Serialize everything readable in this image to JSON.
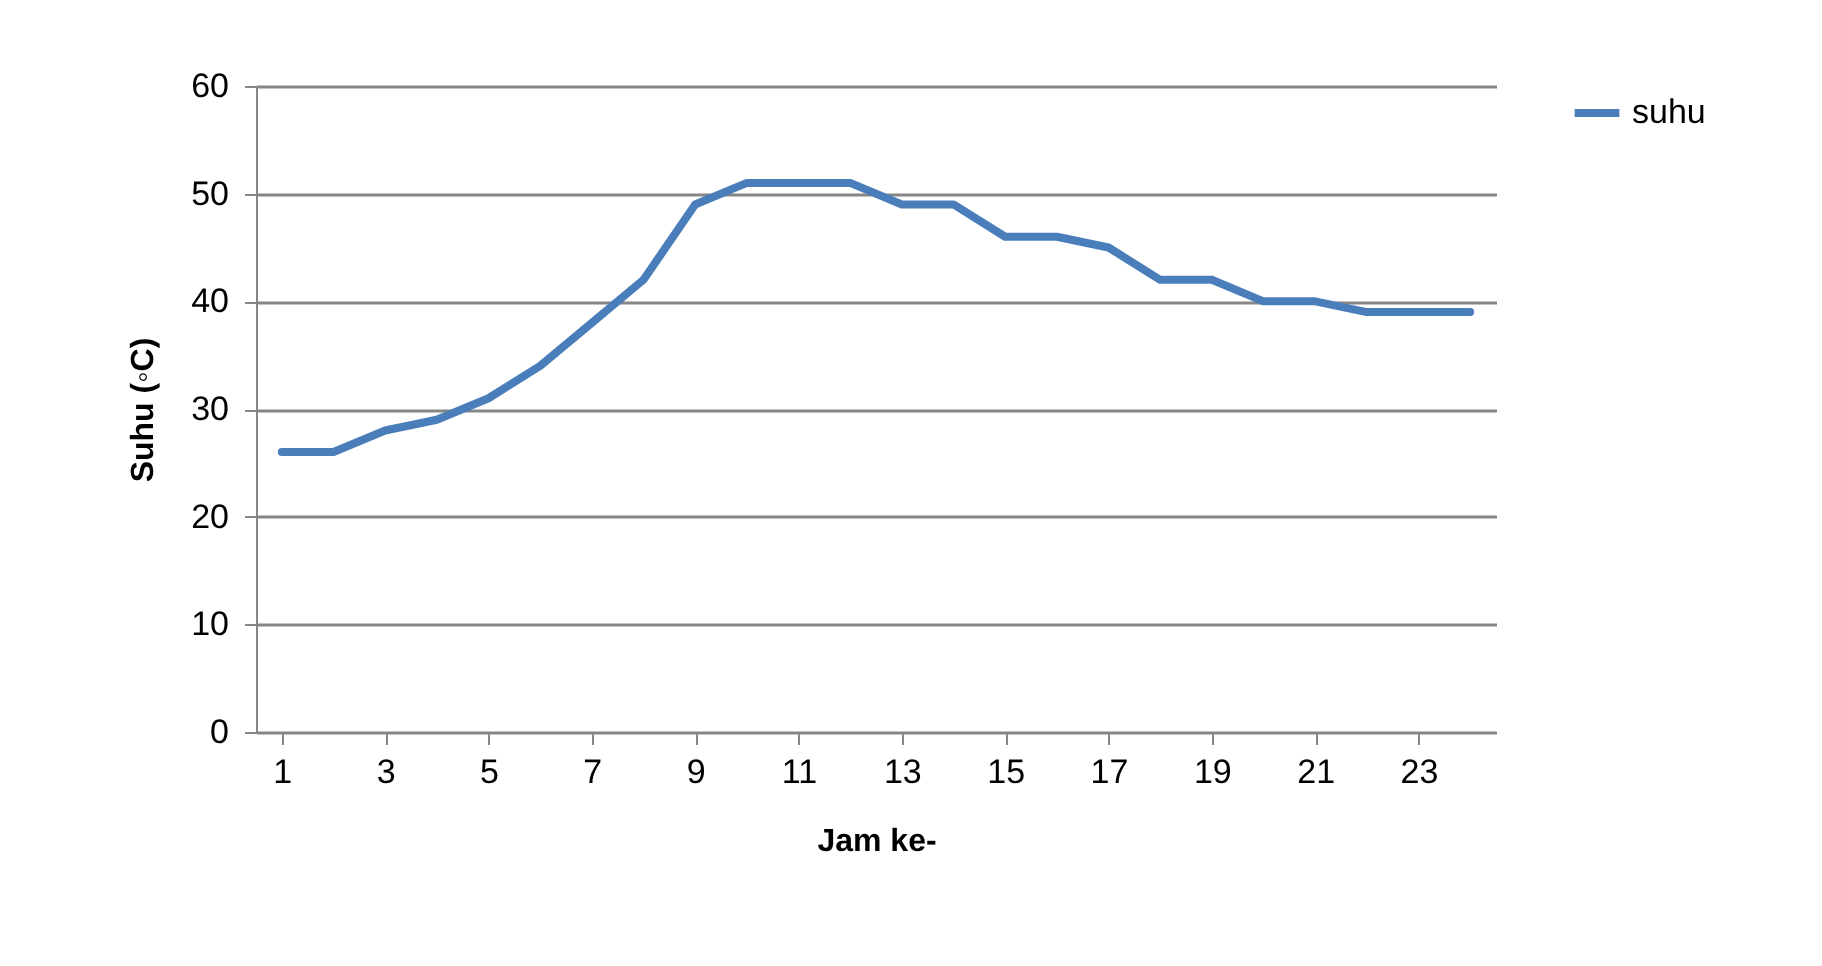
{
  "chart_data": {
    "type": "line",
    "xlabel": "Jam ke-",
    "ylabel": "Suhu (◦C)",
    "x": [
      1,
      2,
      3,
      4,
      5,
      6,
      7,
      8,
      9,
      10,
      11,
      12,
      13,
      14,
      15,
      16,
      17,
      18,
      19,
      20,
      21,
      22,
      23,
      24
    ],
    "series": [
      {
        "name": "suhu",
        "color": "#4a7ebb",
        "values": [
          26,
          26,
          28,
          29,
          31,
          34,
          38,
          42,
          49,
          51,
          51,
          51,
          49,
          49,
          46,
          46,
          45,
          42,
          42,
          40,
          40,
          39,
          39,
          39
        ]
      }
    ],
    "xlim": [
      0.5,
      24.5
    ],
    "xticks": [
      1,
      3,
      5,
      7,
      9,
      11,
      13,
      15,
      17,
      19,
      21,
      23
    ],
    "ylim": [
      0,
      60
    ],
    "yticks": [
      0,
      10,
      20,
      30,
      40,
      50,
      60
    ],
    "grid": "y",
    "legend": "right",
    "marker": "none",
    "line_style": "solid"
  }
}
